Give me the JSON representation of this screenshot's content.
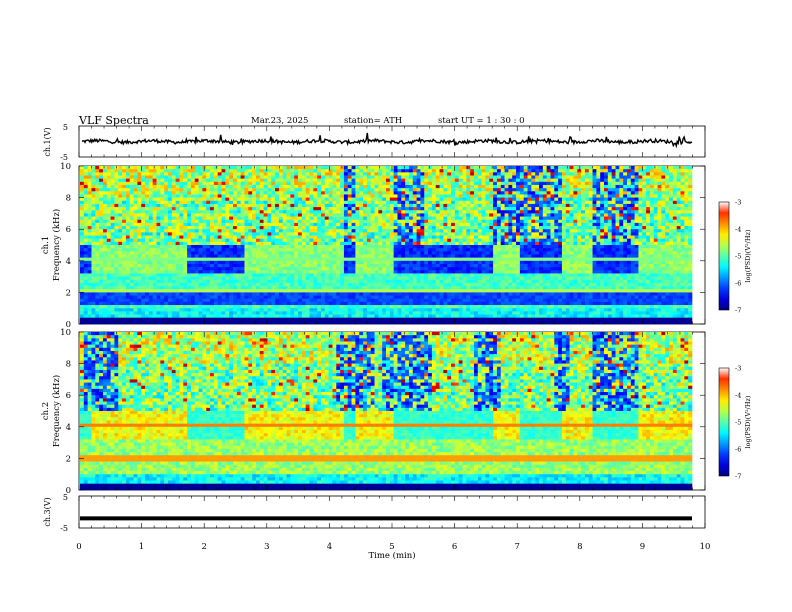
{
  "header": {
    "title": "VLF  Spectra",
    "date": "Mar.23, 2025",
    "station": "station= ATH",
    "start": "start  UT  =   1 : 30 : 0"
  },
  "chart_data": [
    {
      "type": "line",
      "name": "ch1-waveform",
      "ylabel": "ch.1(V)",
      "ylim": [
        -5,
        5
      ],
      "yticks": [
        "5",
        "-5"
      ],
      "baseline": 0,
      "xlim": [
        0,
        10
      ]
    },
    {
      "type": "heatmap",
      "name": "ch1-spectrogram",
      "ylabel": "ch.1\nFrequency (kHz)",
      "ylabel_lines": [
        "ch.1",
        "Frequency  (kHz)"
      ],
      "ylim": [
        0,
        10
      ],
      "yticks": [
        "0",
        "2",
        "4",
        "6",
        "8",
        "10"
      ],
      "colorbar": {
        "label": "log(PSD)(V²/Hz)",
        "range": [
          -7,
          -3
        ],
        "ticks": [
          "-3",
          "-4",
          "-5",
          "-6",
          "-7"
        ]
      }
    },
    {
      "type": "heatmap",
      "name": "ch2-spectrogram",
      "ylabel_lines": [
        "ch.2",
        "Frequency  (kHz)"
      ],
      "ylim": [
        0,
        10
      ],
      "yticks": [
        "0",
        "2",
        "4",
        "6",
        "8",
        "10"
      ],
      "colorbar": {
        "label": "log(PSD)(V²/Hz)",
        "range": [
          -7,
          -3
        ],
        "ticks": [
          "-3",
          "-4",
          "-5",
          "-6",
          "-7"
        ]
      }
    },
    {
      "type": "line",
      "name": "ch3-waveform",
      "ylabel": "ch.3(V)",
      "ylim": [
        -5,
        5
      ],
      "yticks": [
        "5",
        "-5"
      ],
      "baseline": -2,
      "xlim": [
        0,
        10
      ],
      "xlabel": "Time  (min)",
      "xticks": [
        "0",
        "1",
        "2",
        "3",
        "4",
        "5",
        "6",
        "7",
        "8",
        "9",
        "10"
      ]
    }
  ]
}
